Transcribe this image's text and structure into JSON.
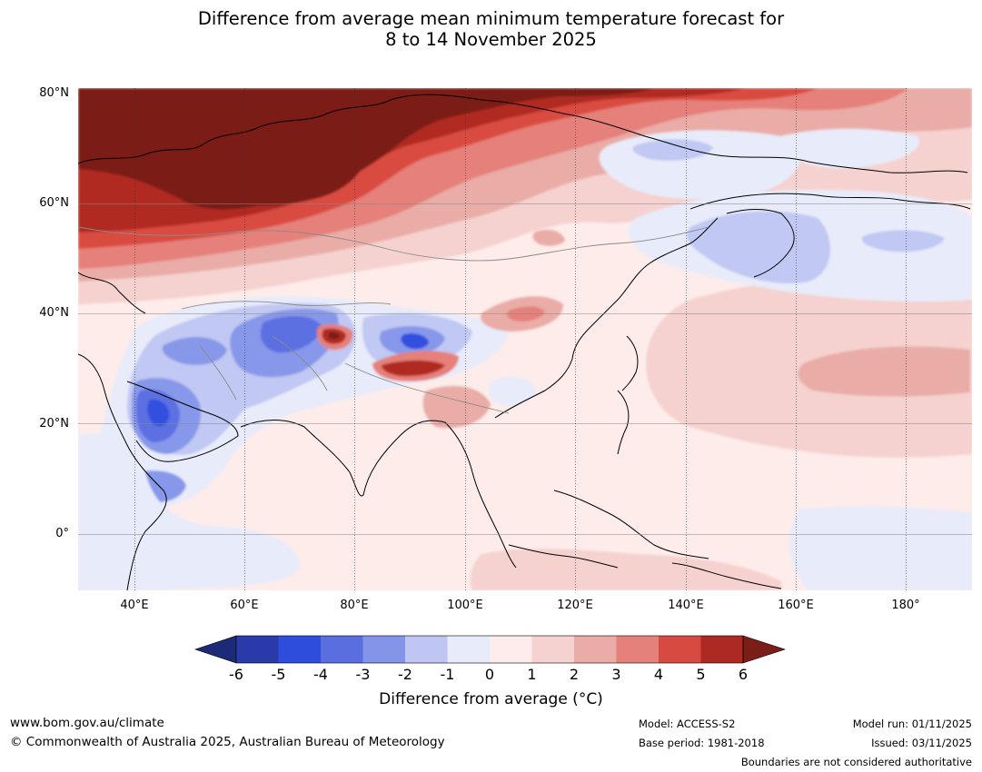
{
  "title": {
    "line1": "Difference from average mean minimum temperature forecast for",
    "line2": "8 to 14 November 2025"
  },
  "map": {
    "latitude_labels": [
      "80°N",
      "60°N",
      "40°N",
      "20°N",
      "0°"
    ],
    "longitude_labels": [
      "40°E",
      "60°E",
      "80°E",
      "100°E",
      "120°E",
      "140°E",
      "160°E",
      "180°"
    ],
    "palette": {
      "m6": "#1c2a78",
      "m5": "#2b3fb5",
      "m4": "#3050e0",
      "m3": "#5c70e2",
      "m2": "#8797e9",
      "m1": "#c0c8f3",
      "z0": "#e8ebfa",
      "p0": "#fdecea",
      "p1": "#f5d2cf",
      "p2": "#eaaca6",
      "p3": "#e5807a",
      "p4": "#d94b40",
      "p5": "#b02a23",
      "p6": "#7b1e18"
    }
  },
  "colorbar": {
    "label": "Difference from average (",
    "label_unit": "°C)",
    "ticks": [
      "-6",
      "-5",
      "-4",
      "-3",
      "-2",
      "-1",
      "0",
      "1",
      "2",
      "3",
      "4",
      "5",
      "6"
    ],
    "colors": [
      "#2a3aa8",
      "#2f4ddc",
      "#5a6ee0",
      "#8494e8",
      "#bfc6f2",
      "#e8ebfa",
      "#fdeceb",
      "#f5d1cf",
      "#eaaca6",
      "#e4817a",
      "#d74a41",
      "#ad2a24"
    ],
    "low_extend_color": "#1c2a78",
    "high_extend_color": "#7b1e18"
  },
  "footer": {
    "website": "www.bom.gov.au/climate",
    "copyright": "© Commonwealth of Australia 2025, Australian Bureau of Meteorology",
    "model": "Model: ACCESS-S2",
    "base_period": "Base period: 1981-2018",
    "model_run": "Model run: 01/11/2025",
    "issued": "Issued: 03/11/2025",
    "disclaimer": "Boundaries are not considered authoritative"
  }
}
